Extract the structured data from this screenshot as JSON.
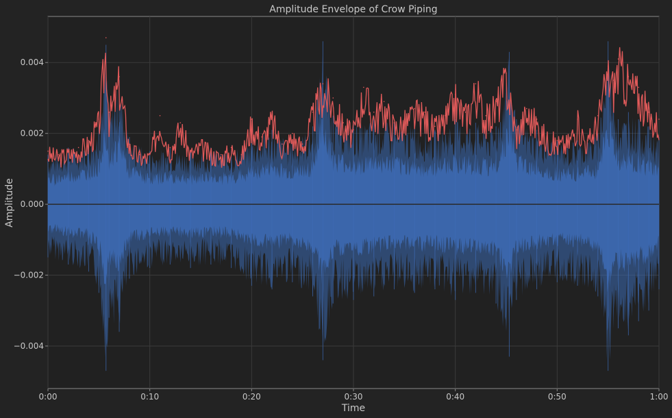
{
  "chart_data": {
    "type": "area",
    "title": "Amplitude Envelope of Crow Piping",
    "xlabel": "Time",
    "ylabel": "Amplitude",
    "x_unit": "seconds",
    "xlim": [
      0,
      60
    ],
    "ylim": [
      -0.0052,
      0.0053
    ],
    "x_ticks": [
      {
        "value": 0,
        "label": "0:00"
      },
      {
        "value": 10,
        "label": "0:10"
      },
      {
        "value": 20,
        "label": "0:20"
      },
      {
        "value": 30,
        "label": "0:30"
      },
      {
        "value": 40,
        "label": "0:40"
      },
      {
        "value": 50,
        "label": "0:50"
      },
      {
        "value": 60,
        "label": "1:00"
      }
    ],
    "y_ticks": [
      {
        "value": 0.004,
        "label": "0.004"
      },
      {
        "value": 0.002,
        "label": "0.002"
      },
      {
        "value": 0.0,
        "label": "0.000"
      },
      {
        "value": -0.002,
        "label": "−0.002"
      },
      {
        "value": -0.004,
        "label": "−0.004"
      }
    ],
    "grid": true,
    "series": [
      {
        "kind": "waveform",
        "color": "#3d6bb5",
        "x": [
          0,
          2,
          4,
          5,
          5.7,
          6,
          7,
          8,
          10,
          12,
          14,
          16,
          18,
          20,
          22,
          24,
          26,
          27,
          28,
          30,
          32,
          34,
          36,
          38,
          40,
          42,
          44,
          45.3,
          46,
          48,
          50,
          52,
          54,
          55,
          56,
          57,
          58,
          59,
          60
        ],
        "upper": [
          0.0014,
          0.0016,
          0.0018,
          0.0022,
          0.0045,
          0.0026,
          0.0035,
          0.0019,
          0.0015,
          0.0016,
          0.0015,
          0.0016,
          0.0015,
          0.0019,
          0.0021,
          0.0018,
          0.0022,
          0.0046,
          0.0025,
          0.0023,
          0.0024,
          0.0023,
          0.0022,
          0.0021,
          0.0024,
          0.0023,
          0.0022,
          0.0043,
          0.0024,
          0.0021,
          0.0018,
          0.0018,
          0.002,
          0.0046,
          0.0024,
          0.0026,
          0.0024,
          0.0022,
          0.0019
        ],
        "lower": [
          -0.0015,
          -0.0017,
          -0.0019,
          -0.0025,
          -0.0047,
          -0.0032,
          -0.0036,
          -0.0021,
          -0.0018,
          -0.0017,
          -0.0018,
          -0.0017,
          -0.0018,
          -0.0023,
          -0.0024,
          -0.0022,
          -0.0026,
          -0.0044,
          -0.0028,
          -0.0027,
          -0.0026,
          -0.0024,
          -0.0025,
          -0.0024,
          -0.0027,
          -0.0025,
          -0.0028,
          -0.0043,
          -0.0027,
          -0.0024,
          -0.0022,
          -0.0023,
          -0.0026,
          -0.0047,
          -0.0035,
          -0.0037,
          -0.0033,
          -0.003,
          -0.0024
        ]
      },
      {
        "kind": "envelope",
        "color": "#e05a5a",
        "x": [
          0,
          1,
          2,
          3,
          4,
          5,
          5.7,
          6,
          7,
          8,
          9,
          10,
          11,
          12,
          13,
          14,
          15,
          16,
          17,
          18,
          19,
          20,
          21,
          22,
          23,
          24,
          25,
          26,
          27,
          28,
          29,
          30,
          31,
          32,
          33,
          34,
          35,
          36,
          37,
          38,
          39,
          40,
          41,
          42,
          43,
          44,
          45,
          46,
          47,
          48,
          49,
          50,
          51,
          52,
          53,
          54,
          55,
          55.5,
          56,
          57,
          58,
          59,
          60
        ],
        "y": [
          0.0015,
          0.0014,
          0.0015,
          0.0016,
          0.0018,
          0.0024,
          0.0047,
          0.0026,
          0.0036,
          0.0017,
          0.0014,
          0.0014,
          0.0025,
          0.0016,
          0.0023,
          0.0015,
          0.0017,
          0.0015,
          0.0014,
          0.0016,
          0.0014,
          0.0024,
          0.0019,
          0.0025,
          0.0017,
          0.002,
          0.0017,
          0.0026,
          0.0034,
          0.003,
          0.0023,
          0.0021,
          0.0033,
          0.0026,
          0.0029,
          0.0023,
          0.0024,
          0.0027,
          0.0026,
          0.0022,
          0.0025,
          0.0031,
          0.0026,
          0.0034,
          0.0025,
          0.0029,
          0.0037,
          0.0021,
          0.0027,
          0.0024,
          0.0019,
          0.0018,
          0.0018,
          0.0024,
          0.0018,
          0.0025,
          0.0039,
          0.0035,
          0.0041,
          0.0036,
          0.0033,
          0.0026,
          0.0024
        ]
      }
    ]
  }
}
